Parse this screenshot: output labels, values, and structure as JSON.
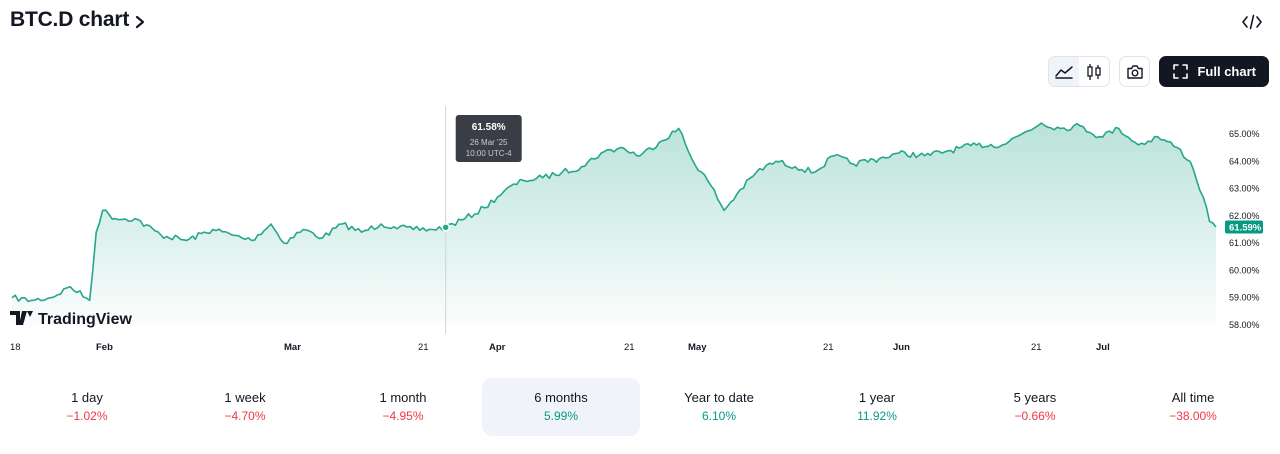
{
  "header": {
    "title": "BTC.D chart"
  },
  "toolbar": {
    "full_chart_label": "Full chart",
    "active_style": "area"
  },
  "logo": {
    "text": "TradingView"
  },
  "colors": {
    "line": "#26a68a",
    "price_badge": "#089981",
    "negative": "#f23645",
    "positive": "#089981"
  },
  "tooltip": {
    "value": "61.58%",
    "date": "26 Mar '25",
    "time": "10:00 UTC-4"
  },
  "chart_data": {
    "type": "area",
    "x_ticks": [
      "18",
      "Feb",
      "Mar",
      "21",
      "Apr",
      "21",
      "May",
      "21",
      "Jun",
      "21",
      "Jul"
    ],
    "y_ticks": [
      "58.00%",
      "59.00%",
      "60.00%",
      "61.00%",
      "62.00%",
      "63.00%",
      "64.00%",
      "65.00%"
    ],
    "ylim": [
      58.0,
      65.4
    ],
    "last_value_label": "61.59%",
    "series": [
      {
        "x": [
          "2025-01-18",
          "2025-01-21",
          "2025-01-24",
          "2025-01-27",
          "2025-01-30",
          "2025-01-31",
          "2025-02-01",
          "2025-02-03",
          "2025-02-06",
          "2025-02-10",
          "2025-02-14",
          "2025-02-18",
          "2025-02-21",
          "2025-02-24",
          "2025-02-27",
          "2025-03-01",
          "2025-03-04",
          "2025-03-07",
          "2025-03-10",
          "2025-03-13",
          "2025-03-16",
          "2025-03-18",
          "2025-03-21",
          "2025-03-24",
          "2025-03-26",
          "2025-03-29",
          "2025-04-01",
          "2025-04-04",
          "2025-04-07",
          "2025-04-10",
          "2025-04-13",
          "2025-04-16",
          "2025-04-19",
          "2025-04-22",
          "2025-04-25",
          "2025-04-28",
          "2025-05-01",
          "2025-05-03",
          "2025-05-06",
          "2025-05-08",
          "2025-05-10",
          "2025-05-13",
          "2025-05-16",
          "2025-05-19",
          "2025-05-22",
          "2025-05-25",
          "2025-05-28",
          "2025-06-01",
          "2025-06-04",
          "2025-06-08",
          "2025-06-12",
          "2025-06-16",
          "2025-06-20",
          "2025-06-23",
          "2025-06-26",
          "2025-06-29",
          "2025-07-02",
          "2025-07-05",
          "2025-07-08",
          "2025-07-11",
          "2025-07-14",
          "2025-07-17",
          "2025-07-19",
          "2025-07-21",
          "2025-07-22",
          "2025-07-23"
        ],
        "y": [
          59.0,
          58.9,
          59.0,
          59.4,
          58.9,
          61.4,
          62.2,
          61.9,
          61.9,
          61.3,
          61.1,
          61.5,
          61.3,
          61.1,
          61.7,
          61.0,
          61.5,
          61.2,
          61.7,
          61.4,
          61.7,
          61.6,
          61.5,
          61.5,
          61.58,
          61.9,
          62.3,
          62.9,
          63.3,
          63.4,
          63.6,
          63.8,
          64.3,
          64.5,
          64.2,
          64.7,
          65.2,
          64.1,
          63.1,
          62.2,
          62.8,
          63.6,
          64.0,
          63.8,
          63.6,
          64.2,
          63.9,
          64.1,
          64.3,
          64.2,
          64.4,
          64.6,
          64.6,
          65.0,
          65.4,
          65.2,
          65.3,
          64.9,
          65.2,
          64.6,
          64.9,
          64.5,
          64.0,
          62.7,
          61.8,
          61.59
        ]
      }
    ]
  },
  "periods": [
    {
      "label": "1 day",
      "change": "−1.02%",
      "dir": "neg"
    },
    {
      "label": "1 week",
      "change": "−4.70%",
      "dir": "neg"
    },
    {
      "label": "1 month",
      "change": "−4.95%",
      "dir": "neg"
    },
    {
      "label": "6 months",
      "change": "5.99%",
      "dir": "pos",
      "active": true
    },
    {
      "label": "Year to date",
      "change": "6.10%",
      "dir": "pos"
    },
    {
      "label": "1 year",
      "change": "11.92%",
      "dir": "pos"
    },
    {
      "label": "5 years",
      "change": "−0.66%",
      "dir": "neg"
    },
    {
      "label": "All time",
      "change": "−38.00%",
      "dir": "neg"
    }
  ]
}
